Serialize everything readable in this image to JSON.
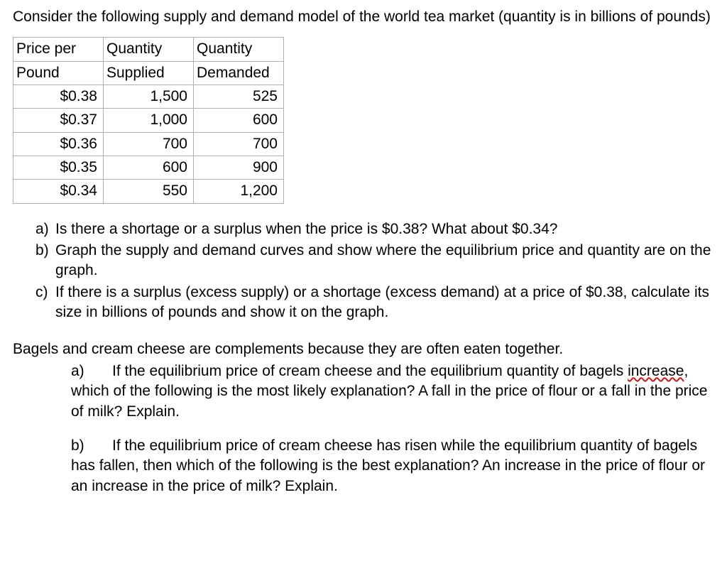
{
  "intro": "Consider the following supply and demand model of the world tea market (quantity is in billions of pounds)",
  "table": {
    "headers": {
      "price_l1": "Price per",
      "price_l2": "Pound",
      "qs_l1": "Quantity",
      "qs_l2": "Supplied",
      "qd_l1": "Quantity",
      "qd_l2": "Demanded"
    },
    "rows": [
      {
        "price": "$0.38",
        "qs": "1,500",
        "qd": "525"
      },
      {
        "price": "$0.37",
        "qs": "1,000",
        "qd": "600"
      },
      {
        "price": "$0.36",
        "qs": "700",
        "qd": "700"
      },
      {
        "price": "$0.35",
        "qs": "600",
        "qd": "900"
      },
      {
        "price": "$0.34",
        "qs": "550",
        "qd": "1,200"
      }
    ]
  },
  "q1": {
    "a": {
      "marker": "a)",
      "text": "Is there a shortage or a surplus when the price is $0.38? What about $0.34?"
    },
    "b": {
      "marker": "b)",
      "text": "Graph the supply and demand curves and show where the equilibrium price and quantity are on the graph."
    },
    "c": {
      "marker": "c)",
      "text": "If there is a surplus (excess supply) or a shortage (excess demand) at a price of $0.38, calculate its size in billions of pounds and show it on the graph."
    }
  },
  "q2": {
    "intro": "Bagels and cream cheese are complements because they are often eaten together.",
    "a": {
      "marker": "a)",
      "pre": "If the equilibrium price of cream cheese and the equilibrium quantity of bagels ",
      "wavy": "increase",
      "post": ", which of the following is the most likely explanation? A fall in the price of flour or a fall in the price of milk? Explain."
    },
    "b": {
      "marker": "b)",
      "text": "If the equilibrium price of cream cheese has risen while the equilibrium quantity of bagels has fallen, then which of the following is the best explanation?  An increase in the price of flour or an increase in the price of milk? Explain."
    }
  }
}
